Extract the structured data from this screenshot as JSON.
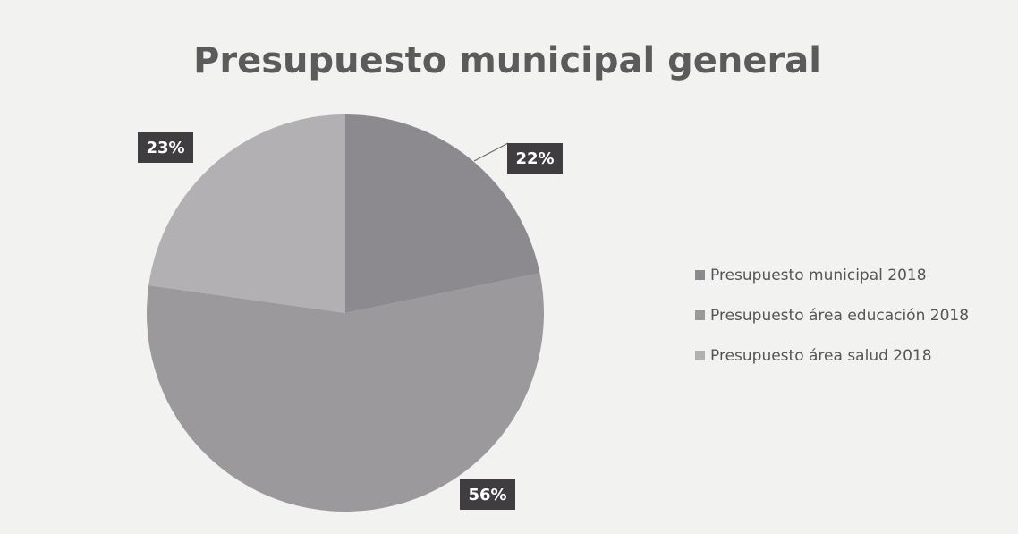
{
  "chart_data": {
    "type": "pie",
    "title": "Presupuesto municipal general",
    "categories": [
      "Presupuesto municipal 2018",
      "Presupuesto área educación 2018",
      "Presupuesto área salud 2018"
    ],
    "values": [
      22,
      56,
      23
    ],
    "value_labels": [
      "22%",
      "56%",
      "23%"
    ],
    "colors": [
      "#8c8a8e",
      "#9b999c",
      "#b2b0b3"
    ],
    "legend": "right"
  }
}
